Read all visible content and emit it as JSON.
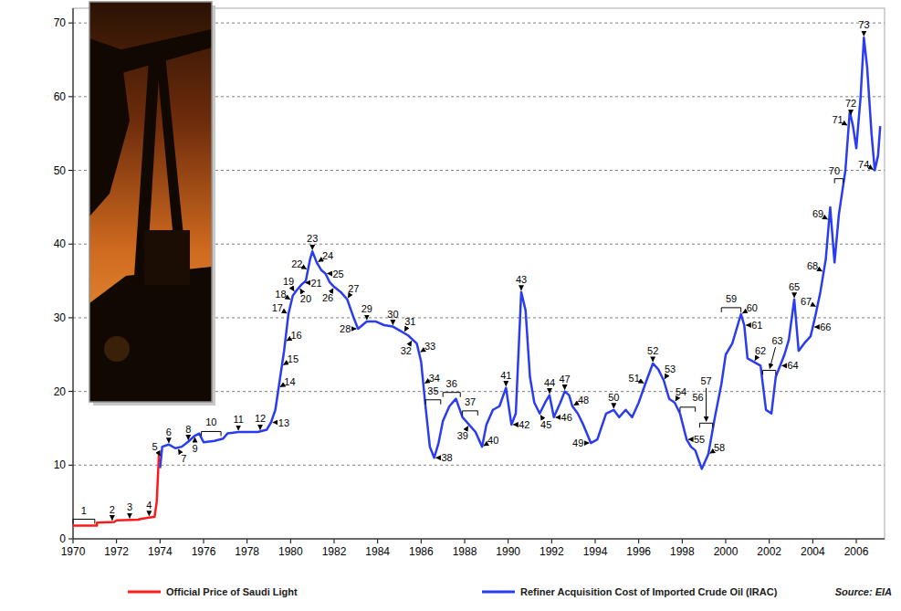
{
  "chart_data": {
    "type": "line",
    "series": [
      {
        "name": "Official Price of Saudi Light",
        "color": "#ff1a1a",
        "x": [
          1970.0,
          1971.1,
          1971.1,
          1971.9,
          1972.0,
          1973.0,
          1973.1,
          1973.75,
          1973.85,
          1973.95,
          1974.0
        ],
        "values": [
          1.8,
          1.8,
          2.2,
          2.3,
          2.5,
          2.6,
          2.7,
          3.0,
          5.1,
          11.6,
          11.6
        ]
      },
      {
        "name": "Refiner Acquisition Cost of Imported Crude Oil (IRAC)",
        "color": "#2a3cf0",
        "x": [
          1974.0,
          1974.1,
          1974.4,
          1974.7,
          1975.0,
          1975.3,
          1975.6,
          1975.8,
          1976.0,
          1976.5,
          1976.9,
          1977.1,
          1977.6,
          1978.0,
          1978.5,
          1978.9,
          1979.1,
          1979.3,
          1979.5,
          1979.7,
          1979.9,
          1980.1,
          1980.3,
          1980.5,
          1980.7,
          1980.9,
          1981.0,
          1981.2,
          1981.4,
          1981.6,
          1981.8,
          1982.0,
          1982.3,
          1982.6,
          1982.9,
          1983.1,
          1983.3,
          1983.5,
          1983.9,
          1984.3,
          1984.7,
          1985.0,
          1985.4,
          1985.8,
          1986.0,
          1986.2,
          1986.4,
          1986.6,
          1986.8,
          1987.0,
          1987.3,
          1987.6,
          1987.9,
          1988.2,
          1988.5,
          1988.8,
          1989.0,
          1989.3,
          1989.6,
          1989.9,
          1990.15,
          1990.35,
          1990.6,
          1990.8,
          1991.0,
          1991.2,
          1991.45,
          1991.7,
          1991.9,
          1992.1,
          1992.4,
          1992.6,
          1992.8,
          1992.95,
          1993.2,
          1993.45,
          1993.8,
          1994.1,
          1994.5,
          1994.85,
          1995.1,
          1995.4,
          1995.7,
          1996.0,
          1996.3,
          1996.65,
          1996.9,
          1997.15,
          1997.4,
          1997.65,
          1997.9,
          1998.2,
          1998.4,
          1998.6,
          1998.9,
          1999.2,
          1999.5,
          1999.8,
          2000.0,
          2000.3,
          2000.5,
          2000.7,
          2000.85,
          2001.0,
          2001.3,
          2001.6,
          2001.85,
          2002.1,
          2002.3,
          2002.5,
          2002.7,
          2002.9,
          2003.15,
          2003.35,
          2003.6,
          2003.9,
          2004.1,
          2004.35,
          2004.6,
          2004.8,
          2005.0,
          2005.2,
          2005.5,
          2005.7,
          2005.85,
          2006.0,
          2006.2,
          2006.35,
          2006.5,
          2006.7,
          2006.85,
          2007.0,
          2007.1
        ],
        "values": [
          9.6,
          12.5,
          12.8,
          12.3,
          12.5,
          13.2,
          14.0,
          14.3,
          13.1,
          13.3,
          13.6,
          14.3,
          14.5,
          14.5,
          14.5,
          14.8,
          15.8,
          17.5,
          21.5,
          25.5,
          30.5,
          33.0,
          33.8,
          34.5,
          35.0,
          38.0,
          39.0,
          37.5,
          36.5,
          36.0,
          34.8,
          34.2,
          33.5,
          32.5,
          30.0,
          28.5,
          29.0,
          29.5,
          29.5,
          29.0,
          28.8,
          28.3,
          27.6,
          26.5,
          24.0,
          18.0,
          12.5,
          11.0,
          13.0,
          16.0,
          18.0,
          19.0,
          16.5,
          15.5,
          14.5,
          12.5,
          15.5,
          17.5,
          18.0,
          20.5,
          15.5,
          17.0,
          33.5,
          31.0,
          22.0,
          18.5,
          17.0,
          18.5,
          19.5,
          16.5,
          18.5,
          20.0,
          19.5,
          18.0,
          17.0,
          15.5,
          13.0,
          13.5,
          17.0,
          17.5,
          16.5,
          17.5,
          16.5,
          18.5,
          21.0,
          23.8,
          23.0,
          21.5,
          19.0,
          18.5,
          17.0,
          13.5,
          12.5,
          12.0,
          9.5,
          11.5,
          16.5,
          21.0,
          25.0,
          26.5,
          28.5,
          30.5,
          29.0,
          24.5,
          24.0,
          23.5,
          17.5,
          17.0,
          22.0,
          23.5,
          25.0,
          27.0,
          32.5,
          25.5,
          26.5,
          27.5,
          30.0,
          33.5,
          38.0,
          45.0,
          37.5,
          44.0,
          50.0,
          58.0,
          56.0,
          53.0,
          60.0,
          68.0,
          64.0,
          55.0,
          50.0,
          52.0,
          56.0
        ]
      }
    ],
    "xlim": [
      1970,
      2007.3
    ],
    "xticks": [
      1970,
      1972,
      1974,
      1976,
      1978,
      1980,
      1982,
      1984,
      1986,
      1988,
      1990,
      1992,
      1994,
      1996,
      1998,
      2000,
      2002,
      2004,
      2006
    ],
    "ylim": [
      0,
      72
    ],
    "yticks": [
      0,
      10,
      20,
      30,
      40,
      50,
      60,
      70
    ],
    "grid": true,
    "legend": "bottom",
    "source": "Source: EIA",
    "annotations": [
      {
        "label": "1",
        "x": [
          1970.0,
          1971.0
        ]
      },
      {
        "label": "2",
        "x": 1971.8
      },
      {
        "label": "3",
        "x": 1972.6
      },
      {
        "label": "4",
        "x": 1973.5
      },
      {
        "label": "5",
        "x": 1974.05
      },
      {
        "label": "6",
        "x": 1974.4
      },
      {
        "label": "7",
        "x": 1974.8
      },
      {
        "label": "8",
        "x": 1975.3
      },
      {
        "label": "9",
        "x": 1975.6
      },
      {
        "label": "10",
        "x": [
          1975.9,
          1976.8
        ]
      },
      {
        "label": "11",
        "x": 1977.6
      },
      {
        "label": "12",
        "x": 1978.6
      },
      {
        "label": "13",
        "x": 1979.1
      },
      {
        "label": "14",
        "x": 1979.45
      },
      {
        "label": "15",
        "x": 1979.6
      },
      {
        "label": "16",
        "x": 1979.75
      },
      {
        "label": "17",
        "x": 1979.9
      },
      {
        "label": "18",
        "x": 1980.05
      },
      {
        "label": "19",
        "x": 1980.2
      },
      {
        "label": "20",
        "x": 1980.4
      },
      {
        "label": "21",
        "x": 1980.6
      },
      {
        "label": "22",
        "x": 1980.8
      },
      {
        "label": "23",
        "x": 1981.0
      },
      {
        "label": "24",
        "x": 1981.2
      },
      {
        "label": "25",
        "x": 1981.6
      },
      {
        "label": "26",
        "x": 1982.0
      },
      {
        "label": "27",
        "x": 1982.6
      },
      {
        "label": "28",
        "x": 1983.1
      },
      {
        "label": "29",
        "x": 1983.5
      },
      {
        "label": "30",
        "x": 1984.7
      },
      {
        "label": "31",
        "x": 1985.2
      },
      {
        "label": "32",
        "x": 1985.6
      },
      {
        "label": "33",
        "x": 1985.9
      },
      {
        "label": "34",
        "x": 1986.1
      },
      {
        "label": "35",
        "x": [
          1986.2,
          1986.9
        ]
      },
      {
        "label": "36",
        "x": [
          1987.0,
          1987.8
        ]
      },
      {
        "label": "37",
        "x": [
          1987.9,
          1988.6
        ]
      },
      {
        "label": "38",
        "x": 1986.6
      },
      {
        "label": "39",
        "x": 1988.2
      },
      {
        "label": "40",
        "x": 1988.8
      },
      {
        "label": "41",
        "x": 1989.9
      },
      {
        "label": "42",
        "x": 1990.15
      },
      {
        "label": "43",
        "x": 1990.6
      },
      {
        "label": "44",
        "x": 1991.9
      },
      {
        "label": "45",
        "x": 1991.45
      },
      {
        "label": "46",
        "x": 1992.1
      },
      {
        "label": "47",
        "x": 1992.6
      },
      {
        "label": "48",
        "x": 1992.95
      },
      {
        "label": "49",
        "x": 1993.8
      },
      {
        "label": "50",
        "x": 1994.85
      },
      {
        "label": "51",
        "x": 1996.3
      },
      {
        "label": "52",
        "x": 1996.65
      },
      {
        "label": "53",
        "x": 1997.15
      },
      {
        "label": "54",
        "x": 1997.65
      },
      {
        "label": "55",
        "x": 1998.2
      },
      {
        "label": "56",
        "x": [
          1997.9,
          1998.6
        ]
      },
      {
        "label": "57",
        "x": [
          1998.8,
          1999.4
        ]
      },
      {
        "label": "58",
        "x": 1999.2
      },
      {
        "label": "59",
        "x": [
          1999.8,
          2000.7
        ]
      },
      {
        "label": "60",
        "x": 2000.7
      },
      {
        "label": "61",
        "x": 2000.85
      },
      {
        "label": "62",
        "x": 2001.3
      },
      {
        "label": "63",
        "x": [
          2001.7,
          2002.3
        ]
      },
      {
        "label": "64",
        "x": 2002.5
      },
      {
        "label": "65",
        "x": 2003.15
      },
      {
        "label": "66",
        "x": 2004.0
      },
      {
        "label": "67",
        "x": 2004.2
      },
      {
        "label": "68",
        "x": 2004.5
      },
      {
        "label": "69",
        "x": 2004.75
      },
      {
        "label": "70",
        "x": [
          2005.0,
          2005.4
        ]
      },
      {
        "label": "71",
        "x": 2005.65
      },
      {
        "label": "72",
        "x": 2005.75
      },
      {
        "label": "73",
        "x": 2006.35
      },
      {
        "label": "74",
        "x": 2006.85
      }
    ]
  }
}
